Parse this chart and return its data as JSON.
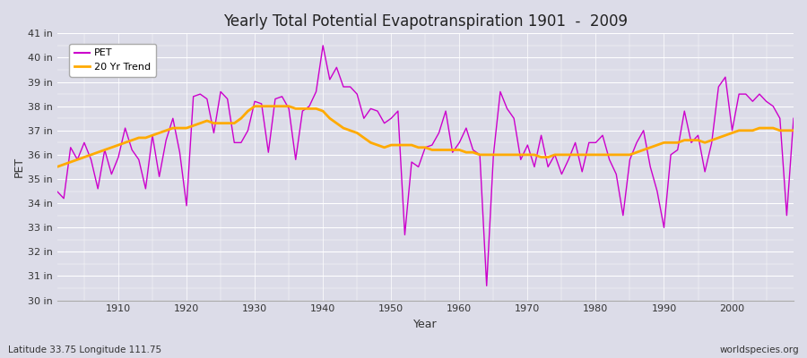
{
  "title": "Yearly Total Potential Evapotranspiration 1901  -  2009",
  "xlabel": "Year",
  "ylabel": "PET",
  "subtitle_left": "Latitude 33.75 Longitude 111.75",
  "subtitle_right": "worldspecies.org",
  "pet_color": "#cc00cc",
  "trend_color": "#ffaa00",
  "bg_color": "#dcdce8",
  "grid_color": "#ffffff",
  "ylim": [
    30,
    41
  ],
  "yticks": [
    30,
    31,
    32,
    33,
    34,
    35,
    36,
    37,
    38,
    39,
    40,
    41
  ],
  "xticks": [
    1910,
    1920,
    1930,
    1940,
    1950,
    1960,
    1970,
    1980,
    1990,
    2000
  ],
  "years": [
    1901,
    1902,
    1903,
    1904,
    1905,
    1906,
    1907,
    1908,
    1909,
    1910,
    1911,
    1912,
    1913,
    1914,
    1915,
    1916,
    1917,
    1918,
    1919,
    1920,
    1921,
    1922,
    1923,
    1924,
    1925,
    1926,
    1927,
    1928,
    1929,
    1930,
    1931,
    1932,
    1933,
    1934,
    1935,
    1936,
    1937,
    1938,
    1939,
    1940,
    1941,
    1942,
    1943,
    1944,
    1945,
    1946,
    1947,
    1948,
    1949,
    1950,
    1951,
    1952,
    1953,
    1954,
    1955,
    1956,
    1957,
    1958,
    1959,
    1960,
    1961,
    1962,
    1963,
    1964,
    1965,
    1966,
    1967,
    1968,
    1969,
    1970,
    1971,
    1972,
    1973,
    1974,
    1975,
    1976,
    1977,
    1978,
    1979,
    1980,
    1981,
    1982,
    1983,
    1984,
    1985,
    1986,
    1987,
    1988,
    1989,
    1990,
    1991,
    1992,
    1993,
    1994,
    1995,
    1996,
    1997,
    1998,
    1999,
    2000,
    2001,
    2002,
    2003,
    2004,
    2005,
    2006,
    2007,
    2008,
    2009
  ],
  "pet": [
    34.5,
    34.2,
    36.3,
    35.8,
    36.5,
    35.8,
    34.6,
    36.2,
    35.2,
    35.9,
    37.1,
    36.2,
    35.8,
    34.6,
    36.8,
    35.1,
    36.6,
    37.5,
    36.1,
    33.9,
    38.4,
    38.5,
    38.3,
    36.9,
    38.6,
    38.3,
    36.5,
    36.5,
    37.0,
    38.2,
    38.1,
    36.1,
    38.3,
    38.4,
    37.9,
    35.8,
    37.8,
    38.0,
    38.6,
    40.5,
    39.1,
    39.6,
    38.8,
    38.8,
    38.5,
    37.5,
    37.9,
    37.8,
    37.3,
    37.5,
    37.8,
    32.7,
    35.7,
    35.5,
    36.3,
    36.4,
    36.9,
    37.8,
    36.1,
    36.5,
    37.1,
    36.2,
    36.0,
    30.6,
    36.0,
    38.6,
    37.9,
    37.5,
    35.8,
    36.4,
    35.5,
    36.8,
    35.5,
    36.0,
    35.2,
    35.8,
    36.5,
    35.3,
    36.5,
    36.5,
    36.8,
    35.8,
    35.2,
    33.5,
    35.8,
    36.5,
    37.0,
    35.5,
    34.5,
    33.0,
    36.0,
    36.2,
    37.8,
    36.5,
    36.8,
    35.3,
    36.5,
    38.8,
    39.2,
    37.0,
    38.5,
    38.5,
    38.2,
    38.5,
    38.2,
    38.0,
    37.5,
    33.5,
    37.5
  ],
  "trend": [
    35.5,
    35.6,
    35.7,
    35.8,
    35.9,
    36.0,
    36.1,
    36.2,
    36.3,
    36.4,
    36.5,
    36.6,
    36.7,
    36.7,
    36.8,
    36.9,
    37.0,
    37.1,
    37.1,
    37.1,
    37.2,
    37.3,
    37.4,
    37.3,
    37.3,
    37.3,
    37.3,
    37.5,
    37.8,
    38.0,
    38.0,
    38.0,
    38.0,
    38.0,
    38.0,
    37.9,
    37.9,
    37.9,
    37.9,
    37.8,
    37.5,
    37.3,
    37.1,
    37.0,
    36.9,
    36.7,
    36.5,
    36.4,
    36.3,
    36.4,
    36.4,
    36.4,
    36.4,
    36.3,
    36.3,
    36.2,
    36.2,
    36.2,
    36.2,
    36.2,
    36.1,
    36.1,
    36.0,
    36.0,
    36.0,
    36.0,
    36.0,
    36.0,
    36.0,
    36.0,
    36.0,
    35.9,
    35.9,
    36.0,
    36.0,
    36.0,
    36.0,
    36.0,
    36.0,
    36.0,
    36.0,
    36.0,
    36.0,
    36.0,
    36.0,
    36.1,
    36.2,
    36.3,
    36.4,
    36.5,
    36.5,
    36.5,
    36.6,
    36.6,
    36.6,
    36.5,
    36.6,
    36.7,
    36.8,
    36.9,
    37.0,
    37.0,
    37.0,
    37.1,
    37.1,
    37.1,
    37.0,
    37.0,
    37.0
  ]
}
